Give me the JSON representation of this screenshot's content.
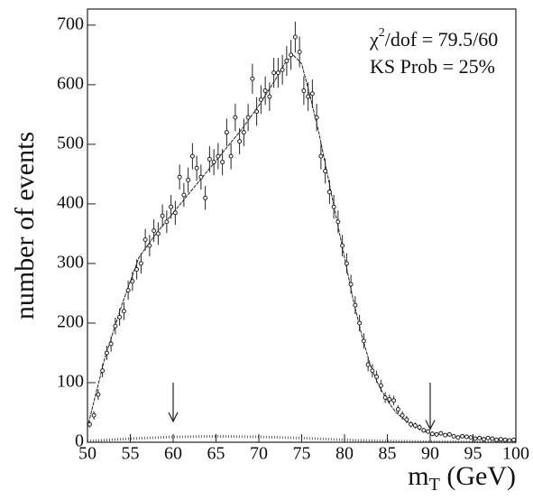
{
  "chart_data": {
    "type": "errorbar",
    "ylabel": "number of events",
    "xlabel": [
      "m",
      "T",
      " (GeV)"
    ],
    "annotations": [
      [
        "χ",
        "2",
        "/dof = 79.5/60"
      ],
      [
        "KS Prob = 25%"
      ]
    ],
    "xlim": [
      50,
      100
    ],
    "ylim": [
      0,
      727
    ],
    "xticks": [
      50,
      55,
      60,
      65,
      70,
      75,
      80,
      85,
      90,
      95,
      100
    ],
    "yticks": [
      0,
      100,
      200,
      300,
      400,
      500,
      600,
      700
    ],
    "arrows": [
      {
        "x": 60,
        "from": 100,
        "to": 35
      },
      {
        "x": 90,
        "from": 100,
        "to": 22
      }
    ],
    "color": "#222",
    "data": {
      "x": [
        50.25,
        50.75,
        51.25,
        51.75,
        52.25,
        52.75,
        53.25,
        53.75,
        54.25,
        54.75,
        55.25,
        55.75,
        56.25,
        56.75,
        57.25,
        57.75,
        58.25,
        58.75,
        59.25,
        59.75,
        60.25,
        60.75,
        61.25,
        61.75,
        62.25,
        62.75,
        63.25,
        63.75,
        64.25,
        64.75,
        65.25,
        65.75,
        66.25,
        66.75,
        67.25,
        67.75,
        68.25,
        68.75,
        69.25,
        69.75,
        70.25,
        70.75,
        71.25,
        71.75,
        72.25,
        72.75,
        73.25,
        73.75,
        74.25,
        74.75,
        75.25,
        75.75,
        76.25,
        76.75,
        77.25,
        77.75,
        78.25,
        78.75,
        79.25,
        79.75,
        80.25,
        80.75,
        81.25,
        81.75,
        82.25,
        82.75,
        83.25,
        83.75,
        84.25,
        84.75,
        85.25,
        85.75,
        86.25,
        86.75,
        87.25,
        87.75,
        88.25,
        88.75,
        89.25,
        89.75,
        90.25,
        90.75,
        91.25,
        91.75,
        92.25,
        92.75,
        93.25,
        93.75,
        94.25,
        94.75,
        95.25,
        95.75,
        96.25,
        96.75,
        97.25,
        97.75,
        98.25,
        98.75,
        99.25,
        99.75
      ],
      "values": [
        30,
        45,
        80,
        120,
        150,
        165,
        195,
        210,
        220,
        255,
        270,
        290,
        300,
        340,
        330,
        355,
        350,
        380,
        370,
        395,
        385,
        445,
        415,
        440,
        480,
        460,
        445,
        410,
        475,
        470,
        480,
        470,
        520,
        480,
        545,
        505,
        520,
        545,
        610,
        555,
        575,
        590,
        580,
        620,
        620,
        625,
        640,
        650,
        680,
        655,
        590,
        580,
        585,
        545,
        480,
        455,
        420,
        395,
        370,
        330,
        300,
        265,
        230,
        200,
        170,
        130,
        120,
        110,
        95,
        75,
        72,
        70,
        55,
        45,
        38,
        30,
        28,
        25,
        20,
        18,
        14,
        13,
        15,
        12,
        13,
        10,
        8,
        10,
        9,
        8,
        6,
        7,
        5,
        7,
        6,
        4,
        5,
        4,
        3,
        4
      ],
      "errors": [
        5.5,
        7,
        9,
        11,
        12,
        13,
        14,
        14.5,
        15,
        16,
        16,
        17,
        17,
        18,
        18,
        19,
        19,
        19,
        19,
        20,
        20,
        21,
        20,
        21,
        22,
        21,
        21,
        20,
        22,
        22,
        22,
        22,
        23,
        22,
        23,
        22,
        23,
        23,
        25,
        24,
        24,
        24,
        24,
        25,
        25,
        25,
        25,
        25,
        26,
        26,
        24,
        24,
        24,
        23,
        22,
        21,
        20,
        20,
        19,
        18,
        17,
        16,
        15,
        14,
        13,
        11,
        11,
        10,
        10,
        9,
        8,
        8,
        7,
        7,
        6,
        5,
        5,
        5,
        4,
        4,
        4,
        4,
        4,
        3,
        4,
        3,
        3,
        3,
        3,
        3,
        2,
        3,
        2,
        3,
        2,
        2,
        2,
        2,
        2,
        2
      ]
    },
    "fit": {
      "x": [
        50,
        52,
        54,
        56,
        58,
        60,
        62,
        64,
        66,
        68,
        70,
        72,
        73,
        74,
        75,
        76,
        77,
        78,
        79,
        80,
        81,
        82,
        83,
        84,
        85,
        86,
        87,
        88,
        89,
        90,
        92,
        95,
        100
      ],
      "values": [
        25,
        140,
        230,
        310,
        350,
        385,
        420,
        455,
        490,
        525,
        565,
        610,
        635,
        650,
        635,
        580,
        520,
        450,
        380,
        310,
        240,
        180,
        130,
        95,
        70,
        50,
        38,
        28,
        20,
        15,
        12,
        8,
        4
      ]
    },
    "background": {
      "x": [
        50,
        55,
        60,
        65,
        70,
        75,
        80,
        85,
        90,
        95,
        100
      ],
      "values": [
        2,
        6,
        9,
        10,
        9,
        7,
        4,
        2,
        1,
        0.5,
        0
      ]
    }
  }
}
